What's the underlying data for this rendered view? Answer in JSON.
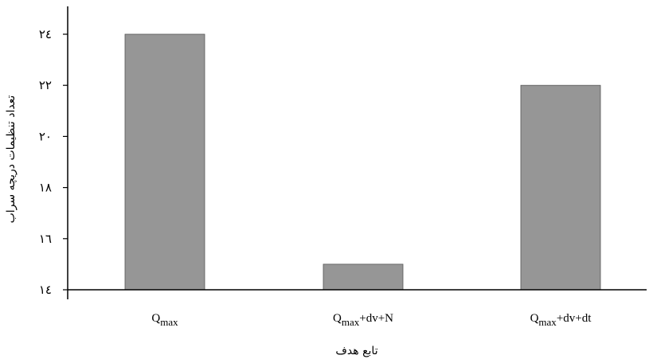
{
  "chart_data": {
    "type": "bar",
    "categories": [
      "Qmax",
      "Qmax+dv+N",
      "Qmax+dv+dt"
    ],
    "category_parts": [
      {
        "base": "Q",
        "sub": "max",
        "rest": ""
      },
      {
        "base": "Q",
        "sub": "max",
        "rest": "+dv+N"
      },
      {
        "base": "Q",
        "sub": "max",
        "rest": "+dv+dt"
      }
    ],
    "values": [
      24,
      15,
      22
    ],
    "ylim": [
      14,
      24
    ],
    "yticks": [
      14,
      16,
      18,
      20,
      22,
      24
    ],
    "ytick_labels": [
      "١٤",
      "١٦",
      "١٨",
      "٢٠",
      "٢٢",
      "٢٤"
    ],
    "xlabel": "تابع هدف",
    "ylabel": "تعداد تنظیمات دریچه سراب",
    "title": "",
    "grid": false,
    "bar_color": "#969696",
    "bar_edge_color": "#555555"
  }
}
